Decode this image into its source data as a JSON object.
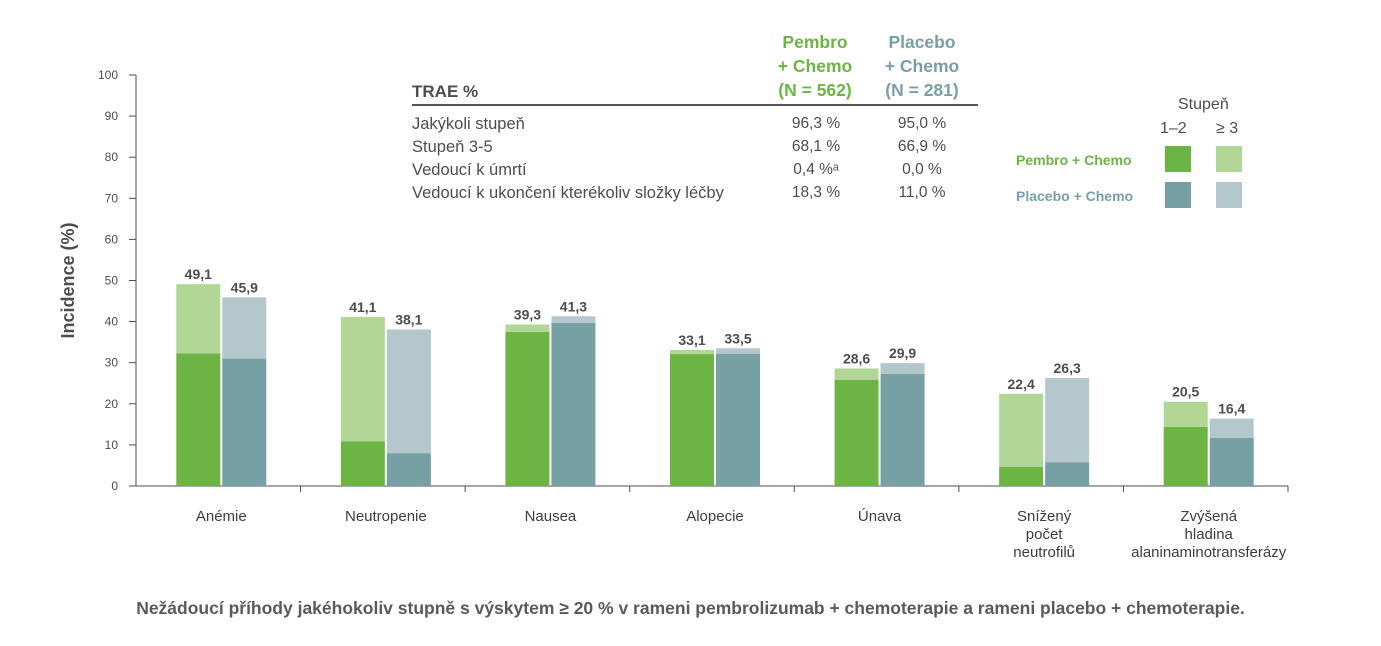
{
  "colors": {
    "pembro_12": "#6cb444",
    "pembro_3": "#b2d696",
    "placebo_12": "#77a0a4",
    "placebo_3": "#b3c7cc",
    "axis": "#4d4d4d"
  },
  "chart_data": {
    "type": "bar",
    "stacked": true,
    "ylabel": "Incidence (%)",
    "ylim": [
      0,
      100
    ],
    "yticks": [
      0,
      10,
      20,
      30,
      40,
      50,
      60,
      70,
      80,
      90,
      100
    ],
    "categories": [
      [
        "Anémie"
      ],
      [
        "Neutropenie"
      ],
      [
        "Nausea"
      ],
      [
        "Alopecie"
      ],
      [
        "Únava"
      ],
      [
        "Snížený",
        "počet",
        "neutrofilů"
      ],
      [
        "Zvýšená",
        "hladina",
        "alaninaminotransferázy"
      ]
    ],
    "series": [
      {
        "name": "Pembro + Chemo",
        "total_labels": [
          "49,1",
          "41,1",
          "39,3",
          "33,1",
          "28,6",
          "22,4",
          "20,5"
        ],
        "totals": [
          49.1,
          41.1,
          39.3,
          33.1,
          28.6,
          22.4,
          20.5
        ],
        "grade_1_2": [
          32.3,
          10.9,
          37.5,
          32.1,
          25.8,
          4.7,
          14.4
        ]
      },
      {
        "name": "Placebo + Chemo",
        "total_labels": [
          "45,9",
          "38,1",
          "41,3",
          "33,5",
          "29,9",
          "26,3",
          "16,4"
        ],
        "totals": [
          45.9,
          38.1,
          41.3,
          33.5,
          29.9,
          26.3,
          16.4
        ],
        "grade_1_2": [
          31.0,
          8.0,
          39.7,
          32.2,
          27.3,
          5.8,
          11.7
        ]
      }
    ],
    "legend": {
      "title": "Stupeň",
      "grade_1_2": "1–2",
      "grade_3": "≥ 3",
      "placement": "top-right"
    }
  },
  "table": {
    "title": "TRAE %",
    "col_pembro": [
      "Pembro",
      "+ Chemo",
      "(N = 562)"
    ],
    "col_placebo": [
      "Placebo",
      "+ Chemo",
      "(N = 281)"
    ],
    "rows": [
      {
        "label": "Jakýkoli stupeň",
        "pembro": "96,3 %",
        "placebo": "95,0 %"
      },
      {
        "label": "Stupeň 3-5",
        "pembro": "68,1 %",
        "placebo": "66,9 %"
      },
      {
        "label": "Vedoucí k úmrtí",
        "pembro": "0,4 %ᵃ",
        "placebo": "0,0 %"
      },
      {
        "label": "Vedoucí k ukončení kterékoliv složky léčby",
        "pembro": "18,3 %",
        "placebo": "11,0 %"
      }
    ]
  },
  "caption": "Nežádoucí příhody jakéhokoliv stupně s výskytem ≥ 20 % v rameni pembrolizumab + chemoterapie a rameni placebo + chemoterapie."
}
